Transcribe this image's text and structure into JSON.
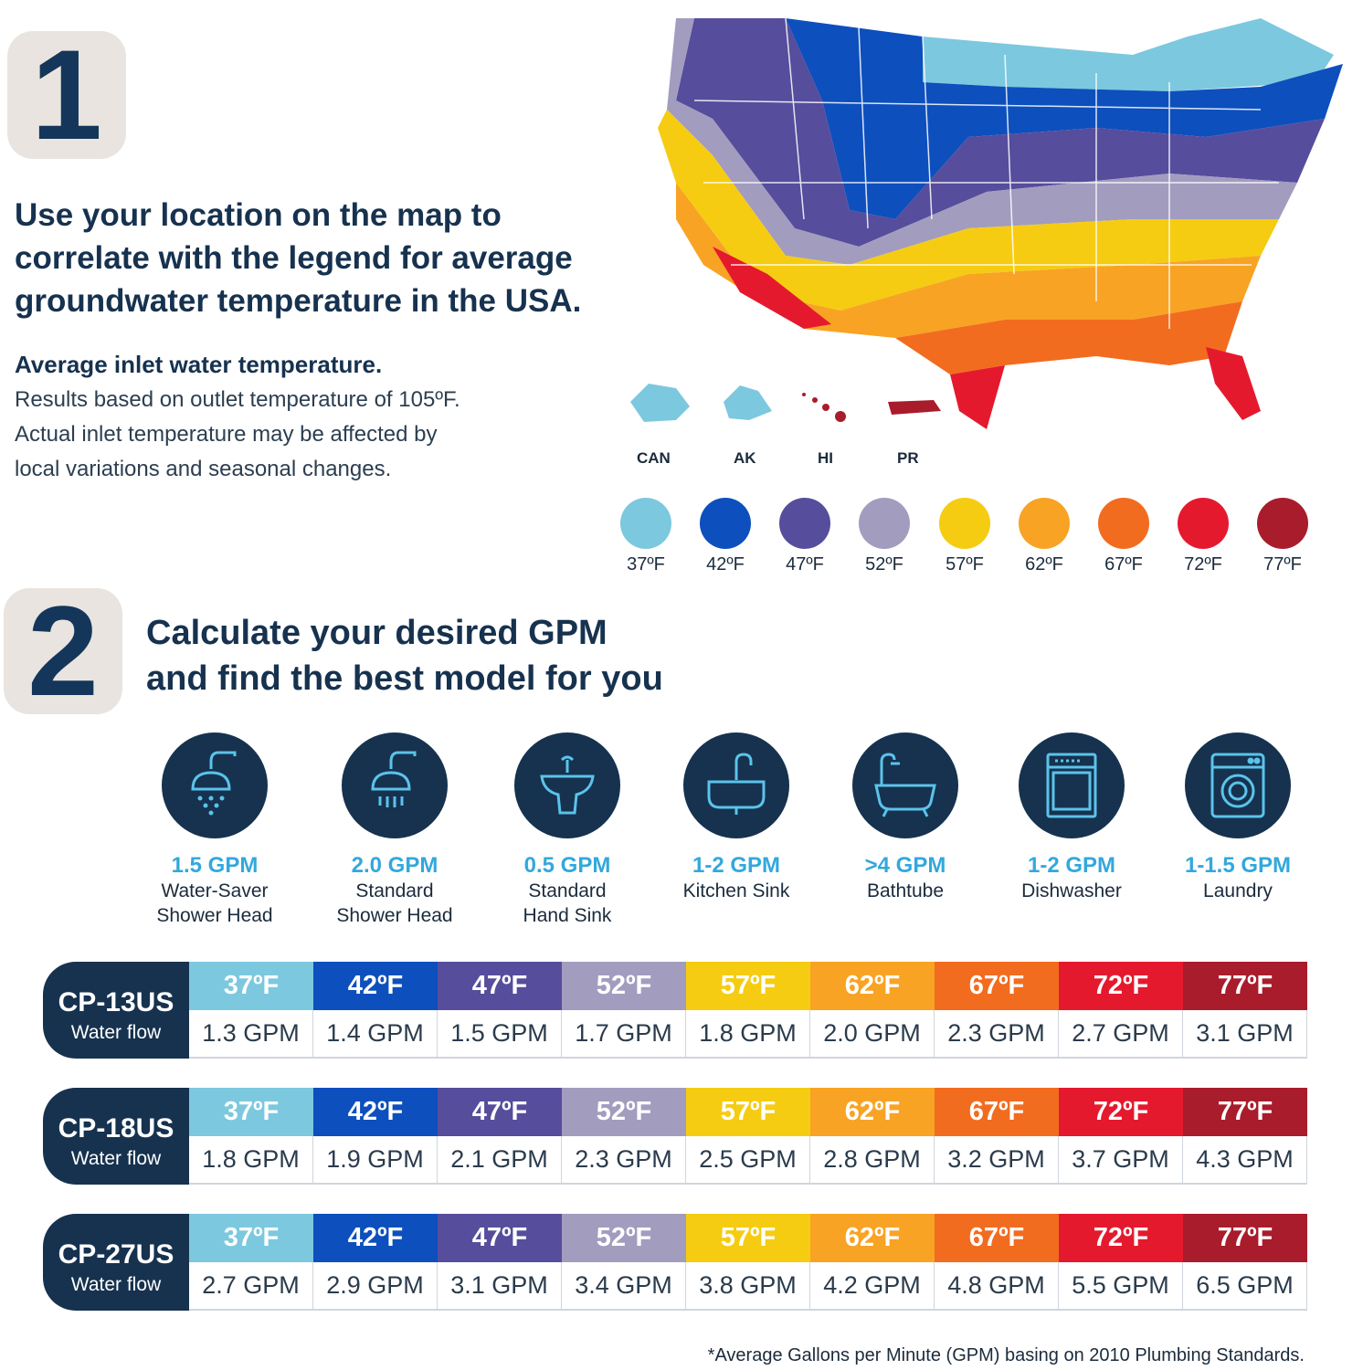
{
  "step1": {
    "number": "1",
    "headline_lines": [
      "Use your location on the map to",
      "correlate with the legend for average",
      "groundwater temperature in the USA."
    ],
    "subhead": "Average inlet water temperature.",
    "body_lines": [
      "Results based on outlet temperature of 105ºF.",
      "Actual inlet temperature may be affected by",
      "local variations and seasonal changes."
    ]
  },
  "map": {
    "territories": [
      "CAN",
      "AK",
      "HI",
      "PR"
    ]
  },
  "legend": [
    {
      "label": "37ºF",
      "color": "#7cc8df"
    },
    {
      "label": "42ºF",
      "color": "#0d4fbd"
    },
    {
      "label": "47ºF",
      "color": "#564d9c"
    },
    {
      "label": "52ºF",
      "color": "#a29cbf"
    },
    {
      "label": "57ºF",
      "color": "#f5cc12"
    },
    {
      "label": "62ºF",
      "color": "#f8a324"
    },
    {
      "label": "67ºF",
      "color": "#f26c1f"
    },
    {
      "label": "72ºF",
      "color": "#e5192e"
    },
    {
      "label": "77ºF",
      "color": "#a91c2c"
    }
  ],
  "step2": {
    "number": "2",
    "headline_lines": [
      "Calculate your desired GPM",
      "and find the best model for you"
    ]
  },
  "fixtures": [
    {
      "icon": "shower-head-icon",
      "gpm": "1.5 GPM",
      "name_lines": [
        "Water-Saver",
        "Shower Head"
      ]
    },
    {
      "icon": "shower-head-icon",
      "gpm": "2.0 GPM",
      "name_lines": [
        "Standard",
        "Shower Head"
      ]
    },
    {
      "icon": "hand-sink-icon",
      "gpm": "0.5 GPM",
      "name_lines": [
        "Standard",
        "Hand Sink"
      ]
    },
    {
      "icon": "kitchen-sink-icon",
      "gpm": "1-2 GPM",
      "name_lines": [
        "Kitchen Sink",
        ""
      ]
    },
    {
      "icon": "bathtub-icon",
      "gpm": ">4 GPM",
      "name_lines": [
        "Bathtube",
        ""
      ]
    },
    {
      "icon": "dishwasher-icon",
      "gpm": "1-2 GPM",
      "name_lines": [
        "Dishwasher",
        ""
      ]
    },
    {
      "icon": "washing-machine-icon",
      "gpm": "1-1.5 GPM",
      "name_lines": [
        "Laundry",
        ""
      ]
    }
  ],
  "models": [
    {
      "name": "CP-13US",
      "sub": "Water flow",
      "temps": [
        "37ºF",
        "42ºF",
        "47ºF",
        "52ºF",
        "57ºF",
        "62ºF",
        "67ºF",
        "72ºF",
        "77ºF"
      ],
      "gpm": [
        "1.3 GPM",
        "1.4 GPM",
        "1.5 GPM",
        "1.7 GPM",
        "1.8 GPM",
        "2.0 GPM",
        "2.3 GPM",
        "2.7 GPM",
        "3.1 GPM"
      ]
    },
    {
      "name": "CP-18US",
      "sub": "Water flow",
      "temps": [
        "37ºF",
        "42ºF",
        "47ºF",
        "52ºF",
        "57ºF",
        "62ºF",
        "67ºF",
        "72ºF",
        "77ºF"
      ],
      "gpm": [
        "1.8 GPM",
        "1.9 GPM",
        "2.1 GPM",
        "2.3 GPM",
        "2.5 GPM",
        "2.8 GPM",
        "3.2 GPM",
        "3.7 GPM",
        "4.3 GPM"
      ]
    },
    {
      "name": "CP-27US",
      "sub": "Water flow",
      "temps": [
        "37ºF",
        "42ºF",
        "47ºF",
        "52ºF",
        "57ºF",
        "62ºF",
        "67ºF",
        "72ºF",
        "77ºF"
      ],
      "gpm": [
        "2.7 GPM",
        "2.9 GPM",
        "3.1 GPM",
        "3.4 GPM",
        "3.8 GPM",
        "4.2 GPM",
        "4.8 GPM",
        "5.5 GPM",
        "6.5 GPM"
      ]
    }
  ],
  "footnote": "*Average Gallons per Minute (GPM) basing on 2010 Plumbing Standards."
}
